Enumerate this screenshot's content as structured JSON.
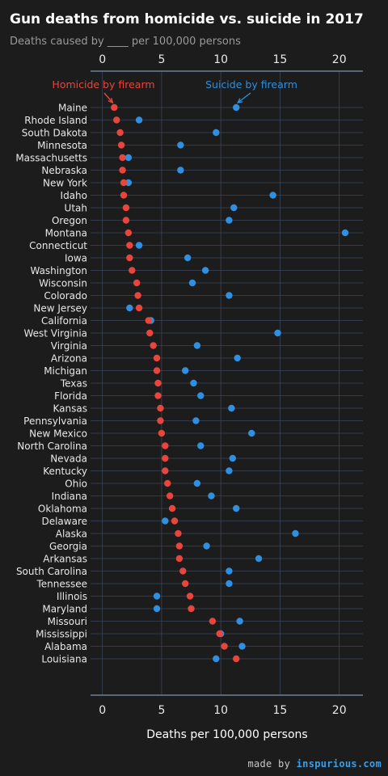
{
  "title": "Gun deaths from homicide vs. suicide in 2017",
  "subtitle": "Deaths caused by ____ per 100,000 persons",
  "credit": {
    "prefix": "made by ",
    "brand": "inspurious.com"
  },
  "colors": {
    "homicide": "#e8453c",
    "suicide": "#2f8fe0",
    "background": "#1c1c1c",
    "grid": "#3a4558",
    "axis_line": "#6c7e98"
  },
  "chart_data": {
    "type": "scatter",
    "xlabel": "Deaths per 100,000 persons",
    "xlim": [
      -1,
      22
    ],
    "xticks": [
      0,
      5,
      10,
      15,
      20
    ],
    "grid": true,
    "categories": [
      "Maine",
      "Rhode Island",
      "South Dakota",
      "Minnesota",
      "Massachusetts",
      "Nebraska",
      "New York",
      "Idaho",
      "Utah",
      "Oregon",
      "Montana",
      "Connecticut",
      "Iowa",
      "Washington",
      "Wisconsin",
      "Colorado",
      "New Jersey",
      "California",
      "West Virginia",
      "Virginia",
      "Arizona",
      "Michigan",
      "Texas",
      "Florida",
      "Kansas",
      "Pennsylvania",
      "New Mexico",
      "North Carolina",
      "Nevada",
      "Kentucky",
      "Ohio",
      "Indiana",
      "Oklahoma",
      "Delaware",
      "Alaska",
      "Georgia",
      "Arkansas",
      "South Carolina",
      "Tennessee",
      "Illinois",
      "Maryland",
      "Missouri",
      "Mississippi",
      "Alabama",
      "Louisiana"
    ],
    "series": [
      {
        "name": "Homicide by firearm",
        "color": "#e8453c",
        "values": [
          1.0,
          1.2,
          1.5,
          1.6,
          1.7,
          1.7,
          1.8,
          1.8,
          2.0,
          2.0,
          2.2,
          2.3,
          2.3,
          2.5,
          2.9,
          3.0,
          3.1,
          3.9,
          4.0,
          4.3,
          4.6,
          4.6,
          4.7,
          4.7,
          4.9,
          4.9,
          5.0,
          5.3,
          5.3,
          5.3,
          5.5,
          5.7,
          5.9,
          6.1,
          6.4,
          6.5,
          6.5,
          6.8,
          7.0,
          7.4,
          7.5,
          9.3,
          9.9,
          10.3,
          11.3
        ]
      },
      {
        "name": "Suicide by firearm",
        "color": "#2f8fe0",
        "values": [
          11.3,
          3.1,
          9.6,
          6.6,
          2.2,
          6.6,
          2.2,
          14.4,
          11.1,
          10.7,
          20.5,
          3.1,
          7.2,
          8.7,
          7.6,
          10.7,
          2.3,
          4.1,
          14.8,
          8.0,
          11.4,
          7.0,
          7.7,
          8.3,
          10.9,
          7.9,
          12.6,
          8.3,
          11.0,
          10.7,
          8.0,
          9.2,
          11.3,
          5.3,
          16.3,
          8.8,
          13.2,
          10.7,
          10.7,
          4.6,
          4.6,
          11.6,
          10.0,
          11.8,
          9.6
        ]
      }
    ]
  }
}
